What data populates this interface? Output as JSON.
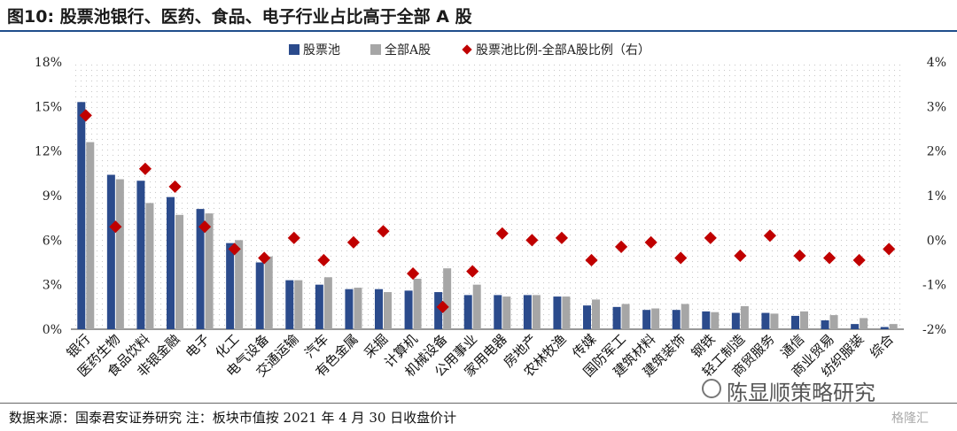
{
  "title": "图10: 股票池银行、医药、食品、电子行业占比高于全部 A 股",
  "source": "数据来源：国泰君安证券研究 注：板块市值按 2021 年 4 月 30 日收盘价计",
  "watermark": "陈显顺策略研究",
  "corner_logo": "格隆汇",
  "colors": {
    "pool": "#2b4b8c",
    "all": "#a6a6a6",
    "diff": "#c00000"
  },
  "chart_data": {
    "type": "bar",
    "categories": [
      "银行",
      "医药生物",
      "食品饮料",
      "非银金融",
      "电子",
      "化工",
      "电气设备",
      "交通运输",
      "汽车",
      "有色金属",
      "采掘",
      "计算机",
      "机械设备",
      "公用事业",
      "家用电器",
      "房地产",
      "农林牧渔",
      "传媒",
      "国防军工",
      "建筑材料",
      "建筑装饰",
      "钢铁",
      "轻工制造",
      "商贸服务",
      "通信",
      "商业贸易",
      "纺织服装",
      "综合"
    ],
    "series": [
      {
        "name": "股票池",
        "axis": "left",
        "values": [
          15.3,
          10.4,
          10.0,
          8.9,
          8.1,
          5.8,
          4.5,
          3.3,
          3.0,
          2.7,
          2.7,
          2.6,
          2.5,
          2.3,
          2.3,
          2.3,
          2.2,
          1.6,
          1.5,
          1.3,
          1.3,
          1.2,
          1.1,
          1.1,
          0.9,
          0.6,
          0.35,
          0.15
        ]
      },
      {
        "name": "全部A股",
        "axis": "left",
        "values": [
          12.6,
          10.1,
          8.5,
          7.7,
          7.8,
          6.0,
          4.9,
          3.3,
          3.5,
          2.8,
          2.5,
          3.4,
          4.1,
          3.0,
          2.2,
          2.3,
          2.2,
          2.0,
          1.7,
          1.4,
          1.7,
          1.15,
          1.55,
          1.05,
          1.2,
          0.95,
          0.75,
          0.35
        ]
      },
      {
        "name": "股票池比例-全部A股比例（右）",
        "axis": "right",
        "type": "scatter",
        "values": [
          2.8,
          0.3,
          1.6,
          1.2,
          0.3,
          -0.2,
          -0.4,
          0.05,
          -0.45,
          -0.05,
          0.2,
          -0.75,
          -1.5,
          -0.7,
          0.15,
          0.0,
          0.05,
          -0.45,
          -0.15,
          -0.05,
          -0.4,
          0.05,
          -0.35,
          0.1,
          -0.35,
          -0.4,
          -0.45,
          -0.2
        ]
      }
    ],
    "yticks_left": [
      "0%",
      "3%",
      "6%",
      "9%",
      "12%",
      "15%",
      "18%"
    ],
    "yticks_right": [
      "-2%",
      "-1%",
      "0%",
      "1%",
      "2%",
      "3%",
      "4%"
    ],
    "ylim_left": [
      0,
      18
    ],
    "ylim_right": [
      -2,
      4
    ],
    "legend_position": "top"
  }
}
